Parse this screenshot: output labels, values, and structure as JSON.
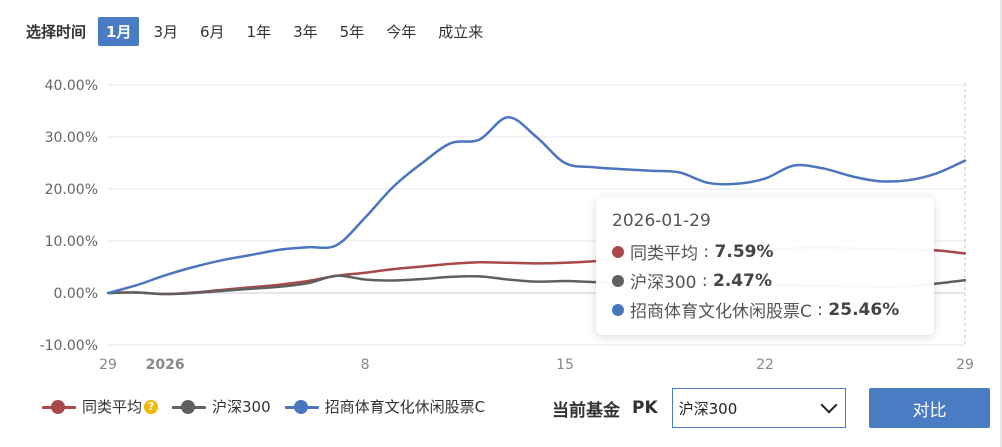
{
  "range_selector": {
    "label": "选择时间",
    "options": [
      "1月",
      "3月",
      "6月",
      "1年",
      "3年",
      "5年",
      "今年",
      "成立来"
    ],
    "active": "1月"
  },
  "chart_data": {
    "type": "line",
    "ylim": [
      -10,
      40
    ],
    "y_ticks": [
      "40.00%",
      "30.00%",
      "20.00%",
      "10.00%",
      "0.00%",
      "-10.00%"
    ],
    "x_ticks": [
      "29",
      "2026",
      "8",
      "15",
      "22",
      "29"
    ],
    "x_tick_days": [
      -1,
      1,
      8,
      15,
      22,
      29
    ],
    "x_range_days": [
      -1,
      29
    ],
    "grid": true,
    "series": [
      {
        "name": "同类平均",
        "color": "#a84848",
        "points": [
          [
            -1,
            0
          ],
          [
            0,
            0.1
          ],
          [
            1,
            -0.2
          ],
          [
            2,
            0.1
          ],
          [
            3,
            0.6
          ],
          [
            4,
            1.1
          ],
          [
            5,
            1.6
          ],
          [
            6,
            2.3
          ],
          [
            7,
            3.3
          ],
          [
            8,
            3.9
          ],
          [
            9,
            4.6
          ],
          [
            10,
            5.1
          ],
          [
            11,
            5.6
          ],
          [
            12,
            5.9
          ],
          [
            13,
            5.8
          ],
          [
            14,
            5.7
          ],
          [
            15,
            5.8
          ],
          [
            16,
            6.1
          ],
          [
            17,
            6.6
          ],
          [
            18,
            7.1
          ],
          [
            19,
            7.5
          ],
          [
            20,
            7.9
          ],
          [
            21,
            8.2
          ],
          [
            22,
            8.4
          ],
          [
            23,
            8.6
          ],
          [
            24,
            8.7
          ],
          [
            25,
            8.6
          ],
          [
            26,
            8.5
          ],
          [
            27,
            8.3
          ],
          [
            28,
            8.2
          ],
          [
            29,
            7.59
          ]
        ]
      },
      {
        "name": "沪深300",
        "color": "#5f5f5f",
        "points": [
          [
            -1,
            0
          ],
          [
            0,
            0.1
          ],
          [
            1,
            -0.2
          ],
          [
            2,
            0.0
          ],
          [
            3,
            0.4
          ],
          [
            4,
            0.8
          ],
          [
            5,
            1.2
          ],
          [
            6,
            1.9
          ],
          [
            7,
            3.3
          ],
          [
            8,
            2.6
          ],
          [
            9,
            2.4
          ],
          [
            10,
            2.7
          ],
          [
            11,
            3.1
          ],
          [
            12,
            3.2
          ],
          [
            13,
            2.6
          ],
          [
            14,
            2.2
          ],
          [
            15,
            2.3
          ],
          [
            16,
            2.1
          ],
          [
            17,
            2.0
          ],
          [
            18,
            2.0
          ],
          [
            19,
            1.9
          ],
          [
            20,
            1.8
          ],
          [
            21,
            1.7
          ],
          [
            22,
            1.6
          ],
          [
            23,
            1.5
          ],
          [
            24,
            1.4
          ],
          [
            25,
            1.3
          ],
          [
            26,
            1.2
          ],
          [
            27,
            1.3
          ],
          [
            28,
            1.8
          ],
          [
            29,
            2.47
          ]
        ]
      },
      {
        "name": "招商体育文化休闲股票C",
        "color": "#4a76c0",
        "points": [
          [
            -1,
            0
          ],
          [
            0,
            1.5
          ],
          [
            1,
            3.4
          ],
          [
            2,
            5.0
          ],
          [
            3,
            6.3
          ],
          [
            4,
            7.3
          ],
          [
            5,
            8.3
          ],
          [
            6,
            8.8
          ],
          [
            7,
            9.2
          ],
          [
            8,
            14.5
          ],
          [
            9,
            20.5
          ],
          [
            10,
            25.0
          ],
          [
            11,
            28.8
          ],
          [
            12,
            29.5
          ],
          [
            13,
            33.8
          ],
          [
            14,
            30.0
          ],
          [
            15,
            25.0
          ],
          [
            16,
            24.2
          ],
          [
            17,
            23.8
          ],
          [
            18,
            23.5
          ],
          [
            19,
            23.2
          ],
          [
            20,
            21.2
          ],
          [
            21,
            21.0
          ],
          [
            22,
            22.0
          ],
          [
            23,
            24.5
          ],
          [
            24,
            24.0
          ],
          [
            25,
            22.5
          ],
          [
            26,
            21.5
          ],
          [
            27,
            21.7
          ],
          [
            28,
            23.0
          ],
          [
            29,
            25.46
          ]
        ]
      }
    ],
    "tooltip_day": 29
  },
  "tooltip": {
    "date": "2026-01-29",
    "rows": [
      {
        "name": "同类平均",
        "value": "7.59%",
        "color": "#a84848"
      },
      {
        "name": "沪深300",
        "value": "2.47%",
        "color": "#5f5f5f"
      },
      {
        "name": "招商体育文化休闲股票C",
        "value": "25.46%",
        "color": "#4a76c0"
      }
    ]
  },
  "legend": [
    {
      "name": "同类平均",
      "color": "#a84848"
    },
    {
      "name": "沪深300",
      "color": "#5f5f5f"
    },
    {
      "name": "招商体育文化休闲股票C",
      "color": "#4a76c0"
    }
  ],
  "pk": {
    "label": "当前基金",
    "pk_text": "PK",
    "selected": "沪深300",
    "button": "对比"
  }
}
